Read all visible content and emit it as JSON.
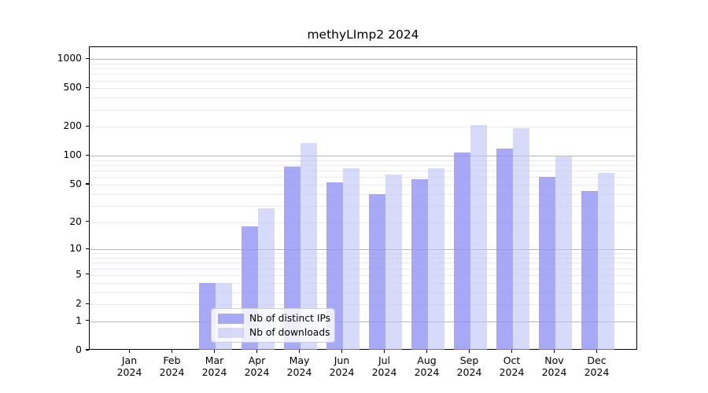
{
  "chart_data": {
    "type": "bar",
    "title": "methyLImp2 2024",
    "x_ticks": [
      {
        "line1": "Jan",
        "line2": "2024"
      },
      {
        "line1": "Feb",
        "line2": "2024"
      },
      {
        "line1": "Mar",
        "line2": "2024"
      },
      {
        "line1": "Apr",
        "line2": "2024"
      },
      {
        "line1": "May",
        "line2": "2024"
      },
      {
        "line1": "Jun",
        "line2": "2024"
      },
      {
        "line1": "Jul",
        "line2": "2024"
      },
      {
        "line1": "Aug",
        "line2": "2024"
      },
      {
        "line1": "Sep",
        "line2": "2024"
      },
      {
        "line1": "Oct",
        "line2": "2024"
      },
      {
        "line1": "Nov",
        "line2": "2024"
      },
      {
        "line1": "Dec",
        "line2": "2024"
      }
    ],
    "series": [
      {
        "name": "Nb of distinct IPs",
        "values": [
          0,
          0,
          4,
          18,
          77,
          53,
          40,
          57,
          108,
          119,
          60,
          43
        ],
        "color": "#a8a9f6",
        "fill_rgba": "rgba(146,148,244,0.8)"
      },
      {
        "name": "Nb of downloads",
        "values": [
          0,
          0,
          4,
          28,
          136,
          75,
          64,
          75,
          210,
          194,
          99,
          67
        ],
        "color": "#d8daf9",
        "fill_rgba": "rgba(190,193,245,0.6)"
      }
    ],
    "y_axis": {
      "scale": "log10(value+1)",
      "ticks": [
        0,
        1,
        2,
        5,
        10,
        20,
        50,
        100,
        200,
        500,
        1000
      ],
      "ylim": [
        0,
        1330
      ]
    },
    "legend_position": "lower center",
    "grid": {
      "major_color": "#b6b6b6",
      "minor_color": "#eaeaee"
    }
  }
}
